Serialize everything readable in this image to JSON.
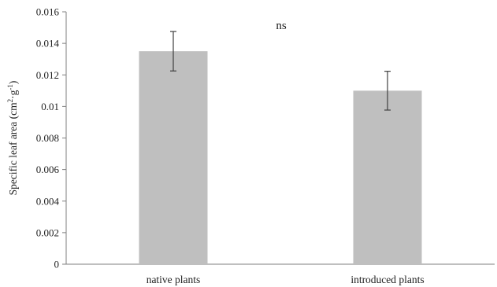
{
  "chart_data": {
    "type": "bar",
    "title": "",
    "xlabel": "",
    "ylabel": {
      "base": "Specific leaf area (cm",
      "sup1": "2",
      "mid": "·g",
      "sup2": "-1",
      "end": ")"
    },
    "categories": [
      "native plants",
      "introduced plants"
    ],
    "values": [
      0.0135,
      0.011
    ],
    "errors": [
      0.00125,
      0.00123
    ],
    "ylim": [
      0,
      0.016
    ],
    "yticks": [
      0,
      0.002,
      0.004,
      0.006,
      0.008,
      0.01,
      0.012,
      0.014,
      0.016
    ],
    "ytick_labels": [
      "0",
      "0.002",
      "0.004",
      "0.006",
      "0.008",
      "0.01",
      "0.012",
      "0.014",
      "0.016"
    ],
    "annotation": "ns",
    "grid": false,
    "legend": "none",
    "bar_color": "#bfbfbf",
    "errorbar_color": "#404040",
    "axis_color": "#7f7f7f"
  }
}
